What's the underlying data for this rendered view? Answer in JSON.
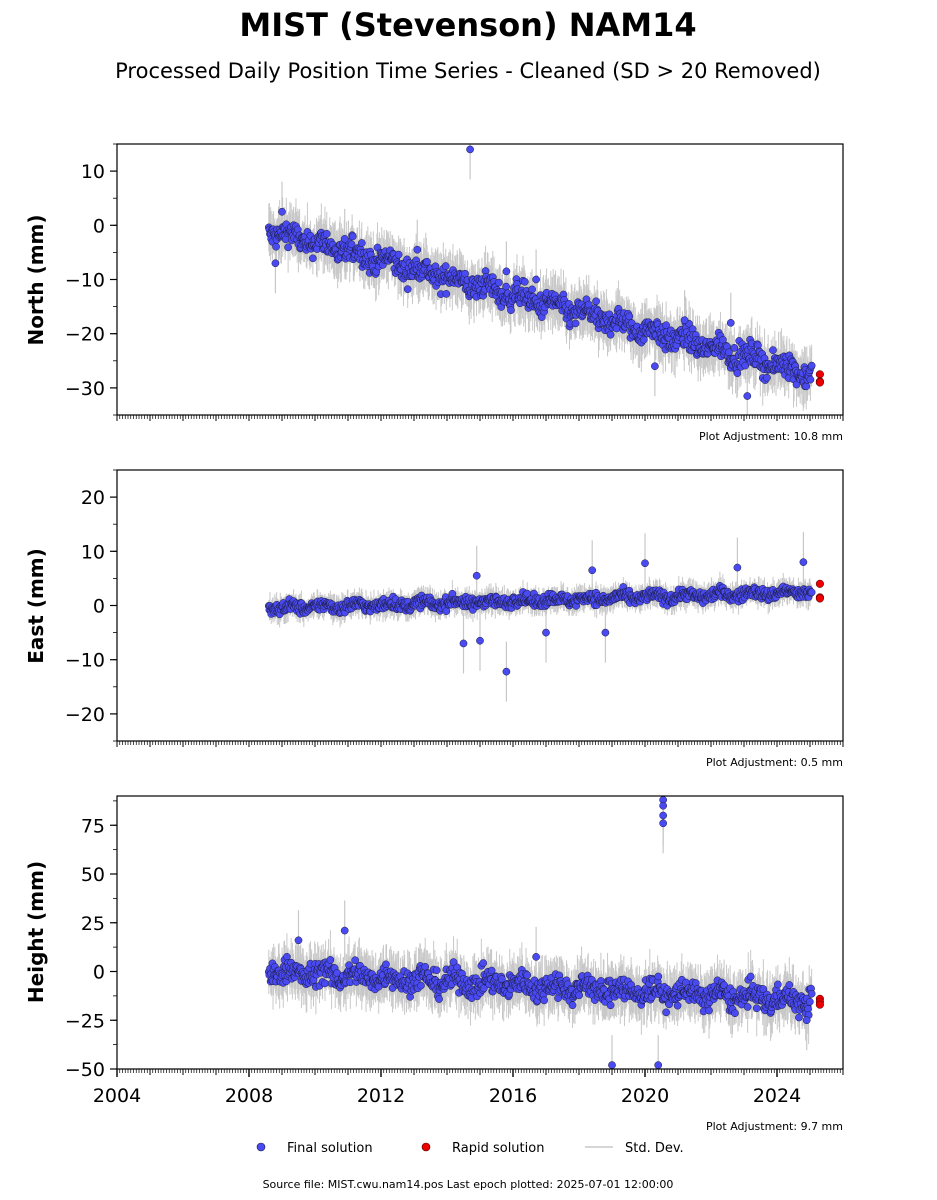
{
  "title": "MIST (Stevenson) NAM14",
  "subtitle": "Processed Daily Position Time Series - Cleaned (SD > 20 Removed)",
  "footer": "Source file: MIST.cwu.nam14.pos  Last epoch plotted: 2025-07-01 12:00:00",
  "legend": {
    "final": "Final solution",
    "rapid": "Rapid solution",
    "std": "Std. Dev."
  },
  "colors": {
    "final": "#4a4af2",
    "rapid": "#ee0000",
    "std": "#c8c8c8",
    "edge": "#1a1a3a"
  },
  "chart_data": [
    {
      "type": "scatter",
      "ylabel": "North (mm)",
      "adjustment": "Plot Adjustment: 10.8 mm",
      "ylim": [
        -35,
        15
      ],
      "yticks": [
        10,
        0,
        -10,
        -20,
        -30
      ],
      "ytick_labels": [
        "10",
        "0",
        "−10",
        "−20",
        "−30"
      ],
      "xlim": [
        2004.0,
        2026.0
      ],
      "xticks": [],
      "trend": {
        "start": [
          2008.6,
          -1.0
        ],
        "end": [
          2025.1,
          -27.5
        ],
        "noise": 2.5
      },
      "series": [
        {
          "name": "Final solution",
          "x_range": [
            2008.6,
            2025.05
          ],
          "outliers": [
            [
              2014.7,
              14.0
            ],
            [
              2015.8,
              -8.5
            ],
            [
              2016.7,
              -10.0
            ],
            [
              2020.3,
              -26.0
            ],
            [
              2021.2,
              -17.5
            ],
            [
              2022.6,
              -18.0
            ],
            [
              2023.1,
              -31.5
            ],
            [
              2009.0,
              2.5
            ],
            [
              2008.8,
              -7.0
            ],
            [
              2010.9,
              -2.5
            ],
            [
              2013.1,
              -4.5
            ]
          ]
        },
        {
          "name": "Rapid solution",
          "points": [
            [
              2025.3,
              -27.5
            ],
            [
              2025.3,
              -28.8
            ],
            [
              2025.3,
              -29.0
            ]
          ]
        }
      ]
    },
    {
      "type": "scatter",
      "ylabel": "East (mm)",
      "adjustment": "Plot Adjustment: 0.5 mm",
      "ylim": [
        -25,
        25
      ],
      "yticks": [
        20,
        10,
        0,
        -10,
        -20
      ],
      "ytick_labels": [
        "20",
        "10",
        "0",
        "−10",
        "−20"
      ],
      "xlim": [
        2004.0,
        2026.0
      ],
      "xticks": [],
      "trend": {
        "start": [
          2008.6,
          -0.5
        ],
        "end": [
          2025.1,
          2.5
        ],
        "noise": 1.2
      },
      "series": [
        {
          "name": "Final solution",
          "x_range": [
            2008.6,
            2025.05
          ],
          "outliers": [
            [
              2014.9,
              5.5
            ],
            [
              2015.8,
              -12.2
            ],
            [
              2018.4,
              6.5
            ],
            [
              2020.0,
              7.8
            ],
            [
              2022.8,
              7.0
            ],
            [
              2024.8,
              8.0
            ],
            [
              2017.0,
              -5.0
            ],
            [
              2018.8,
              -5.0
            ],
            [
              2014.5,
              -7.0
            ],
            [
              2015.0,
              -6.5
            ]
          ]
        },
        {
          "name": "Rapid solution",
          "points": [
            [
              2025.3,
              4.0
            ],
            [
              2025.3,
              1.5
            ],
            [
              2025.3,
              1.3
            ]
          ]
        }
      ]
    },
    {
      "type": "scatter",
      "ylabel": "Height (mm)",
      "adjustment": "Plot Adjustment: 9.7 mm",
      "ylim": [
        -50,
        90
      ],
      "yticks": [
        75,
        50,
        25,
        0,
        -25,
        -50
      ],
      "ytick_labels": [
        "75",
        "50",
        "25",
        "0",
        "−25",
        "−50"
      ],
      "xlim": [
        2004.0,
        2026.0
      ],
      "xticks": [
        2004,
        2008,
        2012,
        2016,
        2020,
        2024
      ],
      "xtick_labels": [
        "2004",
        "2008",
        "2012",
        "2016",
        "2020",
        "2024"
      ],
      "trend": {
        "start": [
          2008.6,
          0.0
        ],
        "end": [
          2025.1,
          -15.0
        ],
        "noise": 7.0
      },
      "series": [
        {
          "name": "Final solution",
          "x_range": [
            2008.6,
            2025.05
          ],
          "outliers": [
            [
              2020.55,
              88.0
            ],
            [
              2020.55,
              85.0
            ],
            [
              2020.55,
              80.0
            ],
            [
              2020.55,
              76.0
            ],
            [
              2009.5,
              16.0
            ],
            [
              2010.9,
              21.0
            ],
            [
              2016.7,
              7.5
            ],
            [
              2019.0,
              -48.0
            ],
            [
              2020.4,
              -48.0
            ],
            [
              2024.9,
              -25.0
            ]
          ]
        },
        {
          "name": "Rapid solution",
          "points": [
            [
              2025.3,
              -14.0
            ],
            [
              2025.3,
              -15.5
            ],
            [
              2025.3,
              -17.0
            ]
          ]
        }
      ]
    }
  ]
}
